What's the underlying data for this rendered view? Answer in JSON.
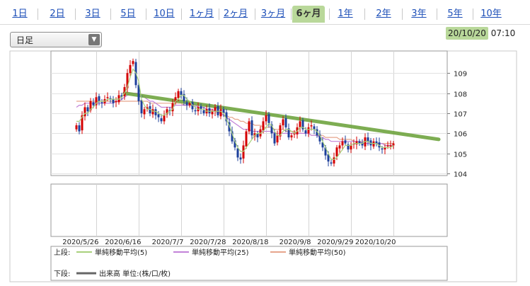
{
  "tabs": [
    "1日",
    "2日",
    "3日",
    "5日",
    "10日",
    "1ヶ月",
    "2ヶ月",
    "3ヶ月",
    "6ヶ月",
    "1年",
    "2年",
    "3年",
    "5年",
    "10年"
  ],
  "active_tab": "6ヶ月",
  "period_select": "日足",
  "timestamp": {
    "date": "20/10/20",
    "time": "07:10"
  },
  "colors": {
    "accent": "#b9d89a",
    "tab_link": "#1d4fb8",
    "up": "#d40000",
    "down": "#1d3f9b",
    "ma5": "#a8d17c",
    "ma25": "#c282d8",
    "ma50": "#e6a58c",
    "trend": "#6fa540"
  },
  "chart_data": {
    "type": "candlestick",
    "x_tick_labels": [
      "2020/5/26",
      "2020/6/16",
      "2020/7/7",
      "2020/7/28",
      "2020/8/18",
      "2020/9/8",
      "2020/9/29",
      "2020/10/20"
    ],
    "y_tick_labels": [
      "104",
      "105",
      "106",
      "107",
      "108",
      "109"
    ],
    "ylim": [
      103.9,
      110.1
    ],
    "legend": {
      "upper_label": "上段:",
      "lower_label": "下段:",
      "items": [
        {
          "name": "単純移動平均(5)",
          "color": "#a8d17c"
        },
        {
          "name": "単純移動平均(25)",
          "color": "#c282d8"
        },
        {
          "name": "単純移動平均(50)",
          "color": "#e6a58c"
        }
      ],
      "volume_item": "出来高 単位:(株/口/枚)"
    },
    "close": [
      106.4,
      106.1,
      106.9,
      107.3,
      107.1,
      107.6,
      107.4,
      107.8,
      107.6,
      107.5,
      107.7,
      107.8,
      107.7,
      107.5,
      107.6,
      107.9,
      107.8,
      108.3,
      109.0,
      109.4,
      109.6,
      108.4,
      107.6,
      107.0,
      107.2,
      107.3,
      107.0,
      107.2,
      106.9,
      106.8,
      106.6,
      106.9,
      107.2,
      107.1,
      107.5,
      107.8,
      108.1,
      107.9,
      107.6,
      107.4,
      107.5,
      107.2,
      107.1,
      107.3,
      107.2,
      107.0,
      107.2,
      107.0,
      107.1,
      107.3,
      106.9,
      107.2,
      107.0,
      106.6,
      106.1,
      105.6,
      105.3,
      104.8,
      104.7,
      105.4,
      106.1,
      106.6,
      105.9,
      106.0,
      105.8,
      106.2,
      106.6,
      106.9,
      106.5,
      106.0,
      105.5,
      105.9,
      106.4,
      106.7,
      106.3,
      105.8,
      105.9,
      106.0,
      106.3,
      106.6,
      106.2,
      106.0,
      106.3,
      106.4,
      106.2,
      105.9,
      105.6,
      105.3,
      104.9,
      104.6,
      104.5,
      104.8,
      105.3,
      105.4,
      105.6,
      105.5,
      105.2,
      105.4,
      105.5,
      105.6,
      105.5,
      105.4,
      105.8,
      105.6,
      105.4,
      105.6,
      105.5,
      105.3,
      105.2,
      105.3,
      105.4,
      105.4,
      105.5
    ],
    "ma5": [
      106.6,
      106.6,
      106.8,
      107.0,
      107.0,
      107.2,
      107.3,
      107.5,
      107.6,
      107.6,
      107.6,
      107.7,
      107.7,
      107.7,
      107.7,
      107.7,
      107.8,
      108.0,
      108.3,
      108.8,
      109.2,
      109.0,
      108.6,
      107.7,
      107.4,
      107.2,
      107.2,
      107.1,
      107.1,
      107.0,
      106.9,
      106.9,
      107.0,
      107.1,
      107.2,
      107.6,
      107.7,
      107.9,
      107.9,
      107.7,
      107.6,
      107.4,
      107.3,
      107.2,
      107.2,
      107.2,
      107.1,
      107.1,
      107.1,
      107.1,
      107.1,
      107.1,
      107.0,
      106.7,
      106.4,
      106.0,
      105.6,
      105.3,
      105.1,
      105.1,
      105.3,
      105.5,
      105.7,
      105.9,
      106.0,
      106.0,
      106.1,
      106.3,
      106.5,
      106.4,
      106.1,
      105.9,
      105.9,
      106.1,
      106.2,
      106.2,
      106.1,
      106.0,
      106.1,
      106.3,
      106.3,
      106.2,
      106.2,
      106.2,
      106.2,
      106.1,
      105.9,
      105.6,
      105.3,
      105.0,
      104.7,
      104.7,
      104.8,
      105.0,
      105.2,
      105.4,
      105.4,
      105.4,
      105.5,
      105.5,
      105.5,
      105.5,
      105.6,
      105.6,
      105.5,
      105.5,
      105.5,
      105.4,
      105.3,
      105.3,
      105.3,
      105.3,
      105.4
    ],
    "ma25": [
      107.3,
      107.4,
      107.4,
      107.5,
      107.5,
      107.5,
      107.5,
      107.5,
      107.5,
      107.5,
      107.5,
      107.5,
      107.5,
      107.5,
      107.6,
      107.6,
      107.7,
      107.8,
      107.9,
      108.0,
      108.0,
      108.0,
      108.0,
      107.9,
      107.8,
      107.7,
      107.6,
      107.6,
      107.5,
      107.4,
      107.3,
      107.3,
      107.3,
      107.3,
      107.3,
      107.4,
      107.4,
      107.4,
      107.4,
      107.4,
      107.4,
      107.4,
      107.4,
      107.3,
      107.3,
      107.3,
      107.2,
      107.2,
      107.2,
      107.1,
      107.1,
      107.0,
      106.9,
      106.8,
      106.7,
      106.6,
      106.5,
      106.4,
      106.3,
      106.2,
      106.2,
      106.2,
      106.1,
      106.1,
      106.1,
      106.1,
      106.1,
      106.1,
      106.1,
      106.1,
      106.0,
      106.0,
      106.0,
      106.0,
      106.0,
      106.0,
      106.0,
      106.0,
      106.0,
      106.0,
      106.0,
      106.0,
      106.0,
      105.9,
      105.9,
      105.9,
      105.8,
      105.8,
      105.7,
      105.7,
      105.6,
      105.6,
      105.6,
      105.6,
      105.6,
      105.6,
      105.6,
      105.6,
      105.6,
      105.6,
      105.6,
      105.5,
      105.5,
      105.5,
      105.5,
      105.5,
      105.5,
      105.5,
      105.5,
      105.4,
      105.4,
      105.4,
      105.4
    ],
    "ma50": [
      107.6,
      107.6,
      107.6,
      107.6,
      107.6,
      107.6,
      107.6,
      107.6,
      107.6,
      107.6,
      107.6,
      107.6,
      107.6,
      107.6,
      107.6,
      107.6,
      107.6,
      107.6,
      107.6,
      107.6,
      107.6,
      107.6,
      107.6,
      107.6,
      107.6,
      107.6,
      107.5,
      107.5,
      107.5,
      107.5,
      107.5,
      107.5,
      107.5,
      107.5,
      107.5,
      107.5,
      107.5,
      107.5,
      107.4,
      107.4,
      107.4,
      107.4,
      107.4,
      107.3,
      107.3,
      107.3,
      107.2,
      107.2,
      107.1,
      107.1,
      107.0,
      107.0,
      106.9,
      106.9,
      106.8,
      106.8,
      106.7,
      106.7,
      106.6,
      106.6,
      106.5,
      106.5,
      106.5,
      106.4,
      106.4,
      106.4,
      106.3,
      106.3,
      106.3,
      106.3,
      106.2,
      106.2,
      106.2,
      106.2,
      106.1,
      106.1,
      106.1,
      106.1,
      106.0,
      106.0,
      106.0,
      106.0,
      106.0,
      105.9,
      105.9,
      105.9,
      105.9,
      105.9,
      105.8,
      105.8,
      105.8,
      105.8,
      105.8,
      105.7,
      105.7,
      105.7,
      105.7,
      105.7,
      105.6,
      105.6,
      105.6,
      105.6,
      105.6,
      105.6,
      105.5,
      105.5,
      105.5,
      105.5,
      105.5,
      105.5,
      105.5,
      105.5,
      105.5
    ],
    "trend_line": {
      "start": [
        17,
        108.0
      ],
      "end": [
        128,
        105.7
      ]
    }
  }
}
